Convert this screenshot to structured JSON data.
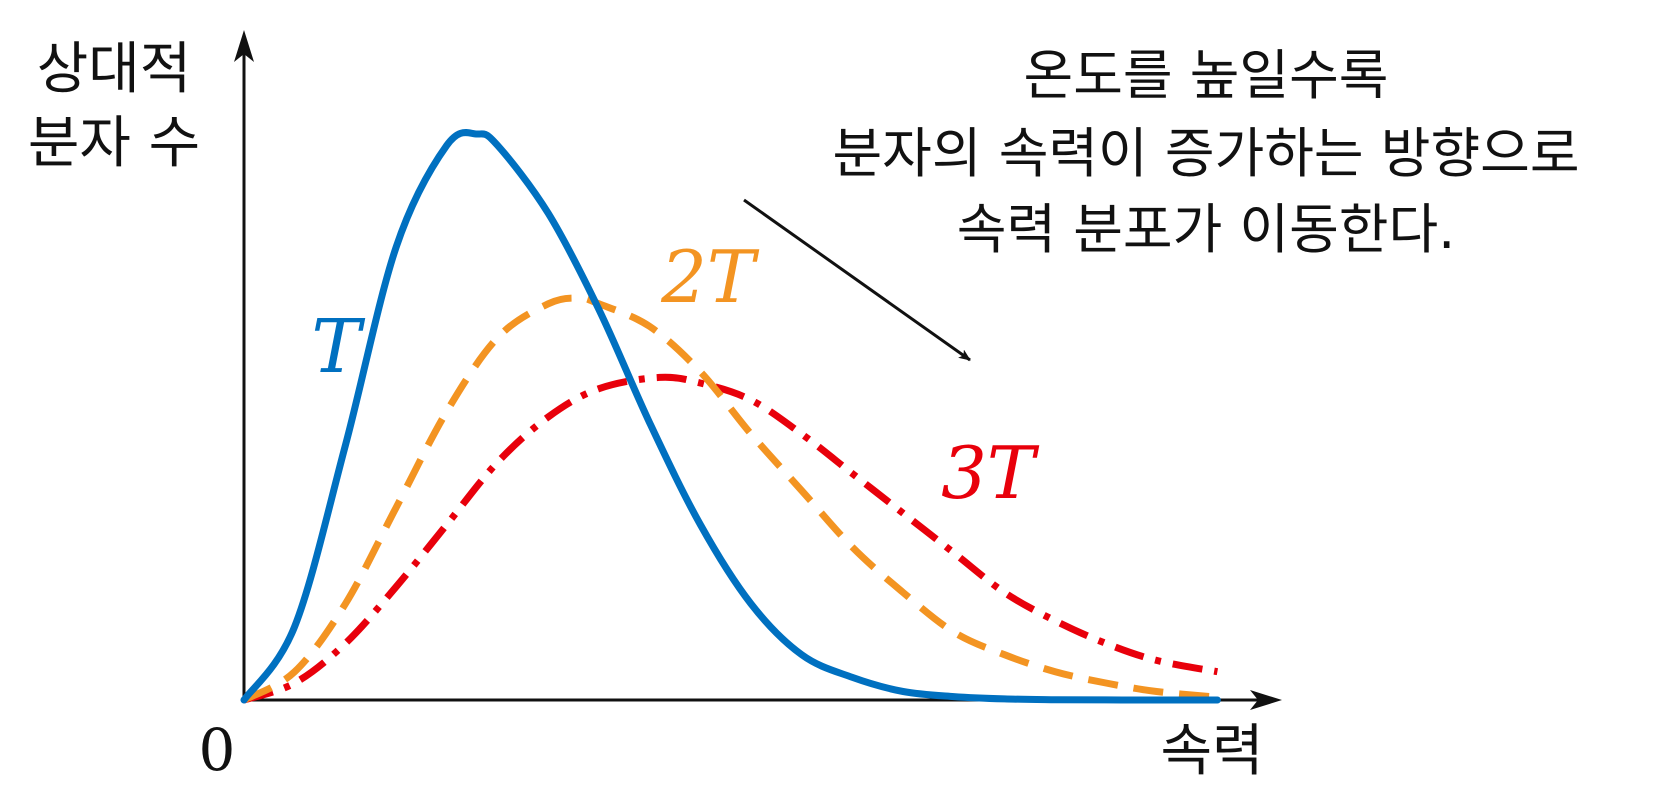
{
  "chart_data": {
    "type": "line",
    "ylabel_lines": [
      "상대적",
      "분자 수"
    ],
    "xlabel": "속력",
    "origin_label": "0",
    "x_range": [
      0,
      1
    ],
    "y_range": [
      0,
      1
    ],
    "grid": false,
    "legend": "none",
    "annotation_lines": [
      "온도를 높일수록",
      "분자의 속력이 증가하는 방향으로",
      "속력 분포가 이동한다."
    ],
    "series": [
      {
        "name": "T",
        "style": "solid",
        "color": "#0070c0",
        "peak_speed": 0.23,
        "peak_value": 1.0,
        "x": [
          0.0,
          0.05,
          0.1,
          0.15,
          0.2,
          0.23,
          0.25,
          0.3,
          0.35,
          0.4,
          0.45,
          0.5,
          0.55,
          0.6,
          0.65,
          0.7,
          0.75,
          0.8,
          0.85,
          0.9,
          0.96
        ],
        "y": [
          0.0,
          0.13,
          0.45,
          0.8,
          0.98,
          1.0,
          0.98,
          0.86,
          0.69,
          0.49,
          0.31,
          0.17,
          0.08,
          0.04,
          0.015,
          0.006,
          0.002,
          0.0006,
          0.00015,
          3e-05,
          0.0
        ]
      },
      {
        "name": "2T",
        "style": "dashed",
        "color": "#f39422",
        "peak_speed": 0.33,
        "peak_value": 0.71,
        "x": [
          0.0,
          0.05,
          0.1,
          0.15,
          0.2,
          0.25,
          0.3,
          0.33,
          0.35,
          0.4,
          0.45,
          0.5,
          0.55,
          0.6,
          0.65,
          0.7,
          0.75,
          0.8,
          0.85,
          0.9,
          0.96
        ],
        "y": [
          0.0,
          0.05,
          0.17,
          0.34,
          0.51,
          0.64,
          0.7,
          0.71,
          0.7,
          0.66,
          0.58,
          0.47,
          0.37,
          0.27,
          0.19,
          0.12,
          0.08,
          0.05,
          0.03,
          0.015,
          0.005
        ]
      },
      {
        "name": "3T",
        "style": "dash-dot",
        "color": "#e8000b",
        "peak_speed": 0.41,
        "peak_value": 0.57,
        "x": [
          0.0,
          0.05,
          0.1,
          0.15,
          0.2,
          0.25,
          0.3,
          0.35,
          0.41,
          0.45,
          0.5,
          0.55,
          0.6,
          0.65,
          0.7,
          0.75,
          0.8,
          0.85,
          0.9,
          0.96
        ],
        "y": [
          0.0,
          0.03,
          0.1,
          0.2,
          0.31,
          0.42,
          0.5,
          0.55,
          0.57,
          0.56,
          0.53,
          0.47,
          0.4,
          0.33,
          0.26,
          0.19,
          0.14,
          0.1,
          0.07,
          0.05
        ]
      }
    ]
  },
  "colors": {
    "axis": "#111111",
    "T": "#0070c0",
    "2T": "#f39422",
    "3T": "#e8000b"
  }
}
